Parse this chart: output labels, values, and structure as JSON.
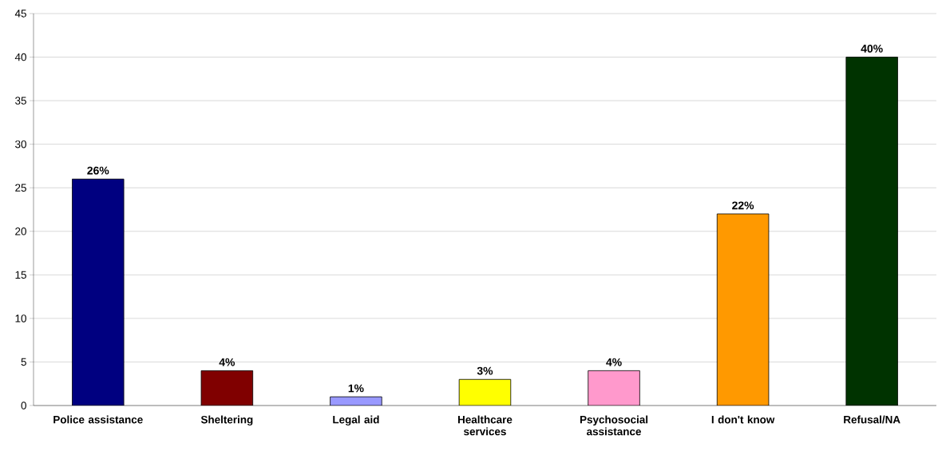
{
  "chart_data": {
    "type": "bar",
    "categories": [
      "Police assistance",
      "Sheltering",
      "Legal aid",
      "Healthcare services",
      "Psychosocial assistance",
      "I don't know",
      "Refusal/NA"
    ],
    "values": [
      26,
      4,
      1,
      3,
      4,
      22,
      40
    ],
    "value_labels": [
      "26%",
      "4%",
      "1%",
      "3%",
      "4%",
      "22%",
      "40%"
    ],
    "colors": [
      "#000080",
      "#800000",
      "#9999ff",
      "#ffff00",
      "#ff99cc",
      "#ff9900",
      "#003300"
    ],
    "ylim": [
      0,
      45
    ],
    "yticks": [
      0,
      5,
      10,
      15,
      20,
      25,
      30,
      35,
      40,
      45
    ],
    "grid": "y"
  }
}
